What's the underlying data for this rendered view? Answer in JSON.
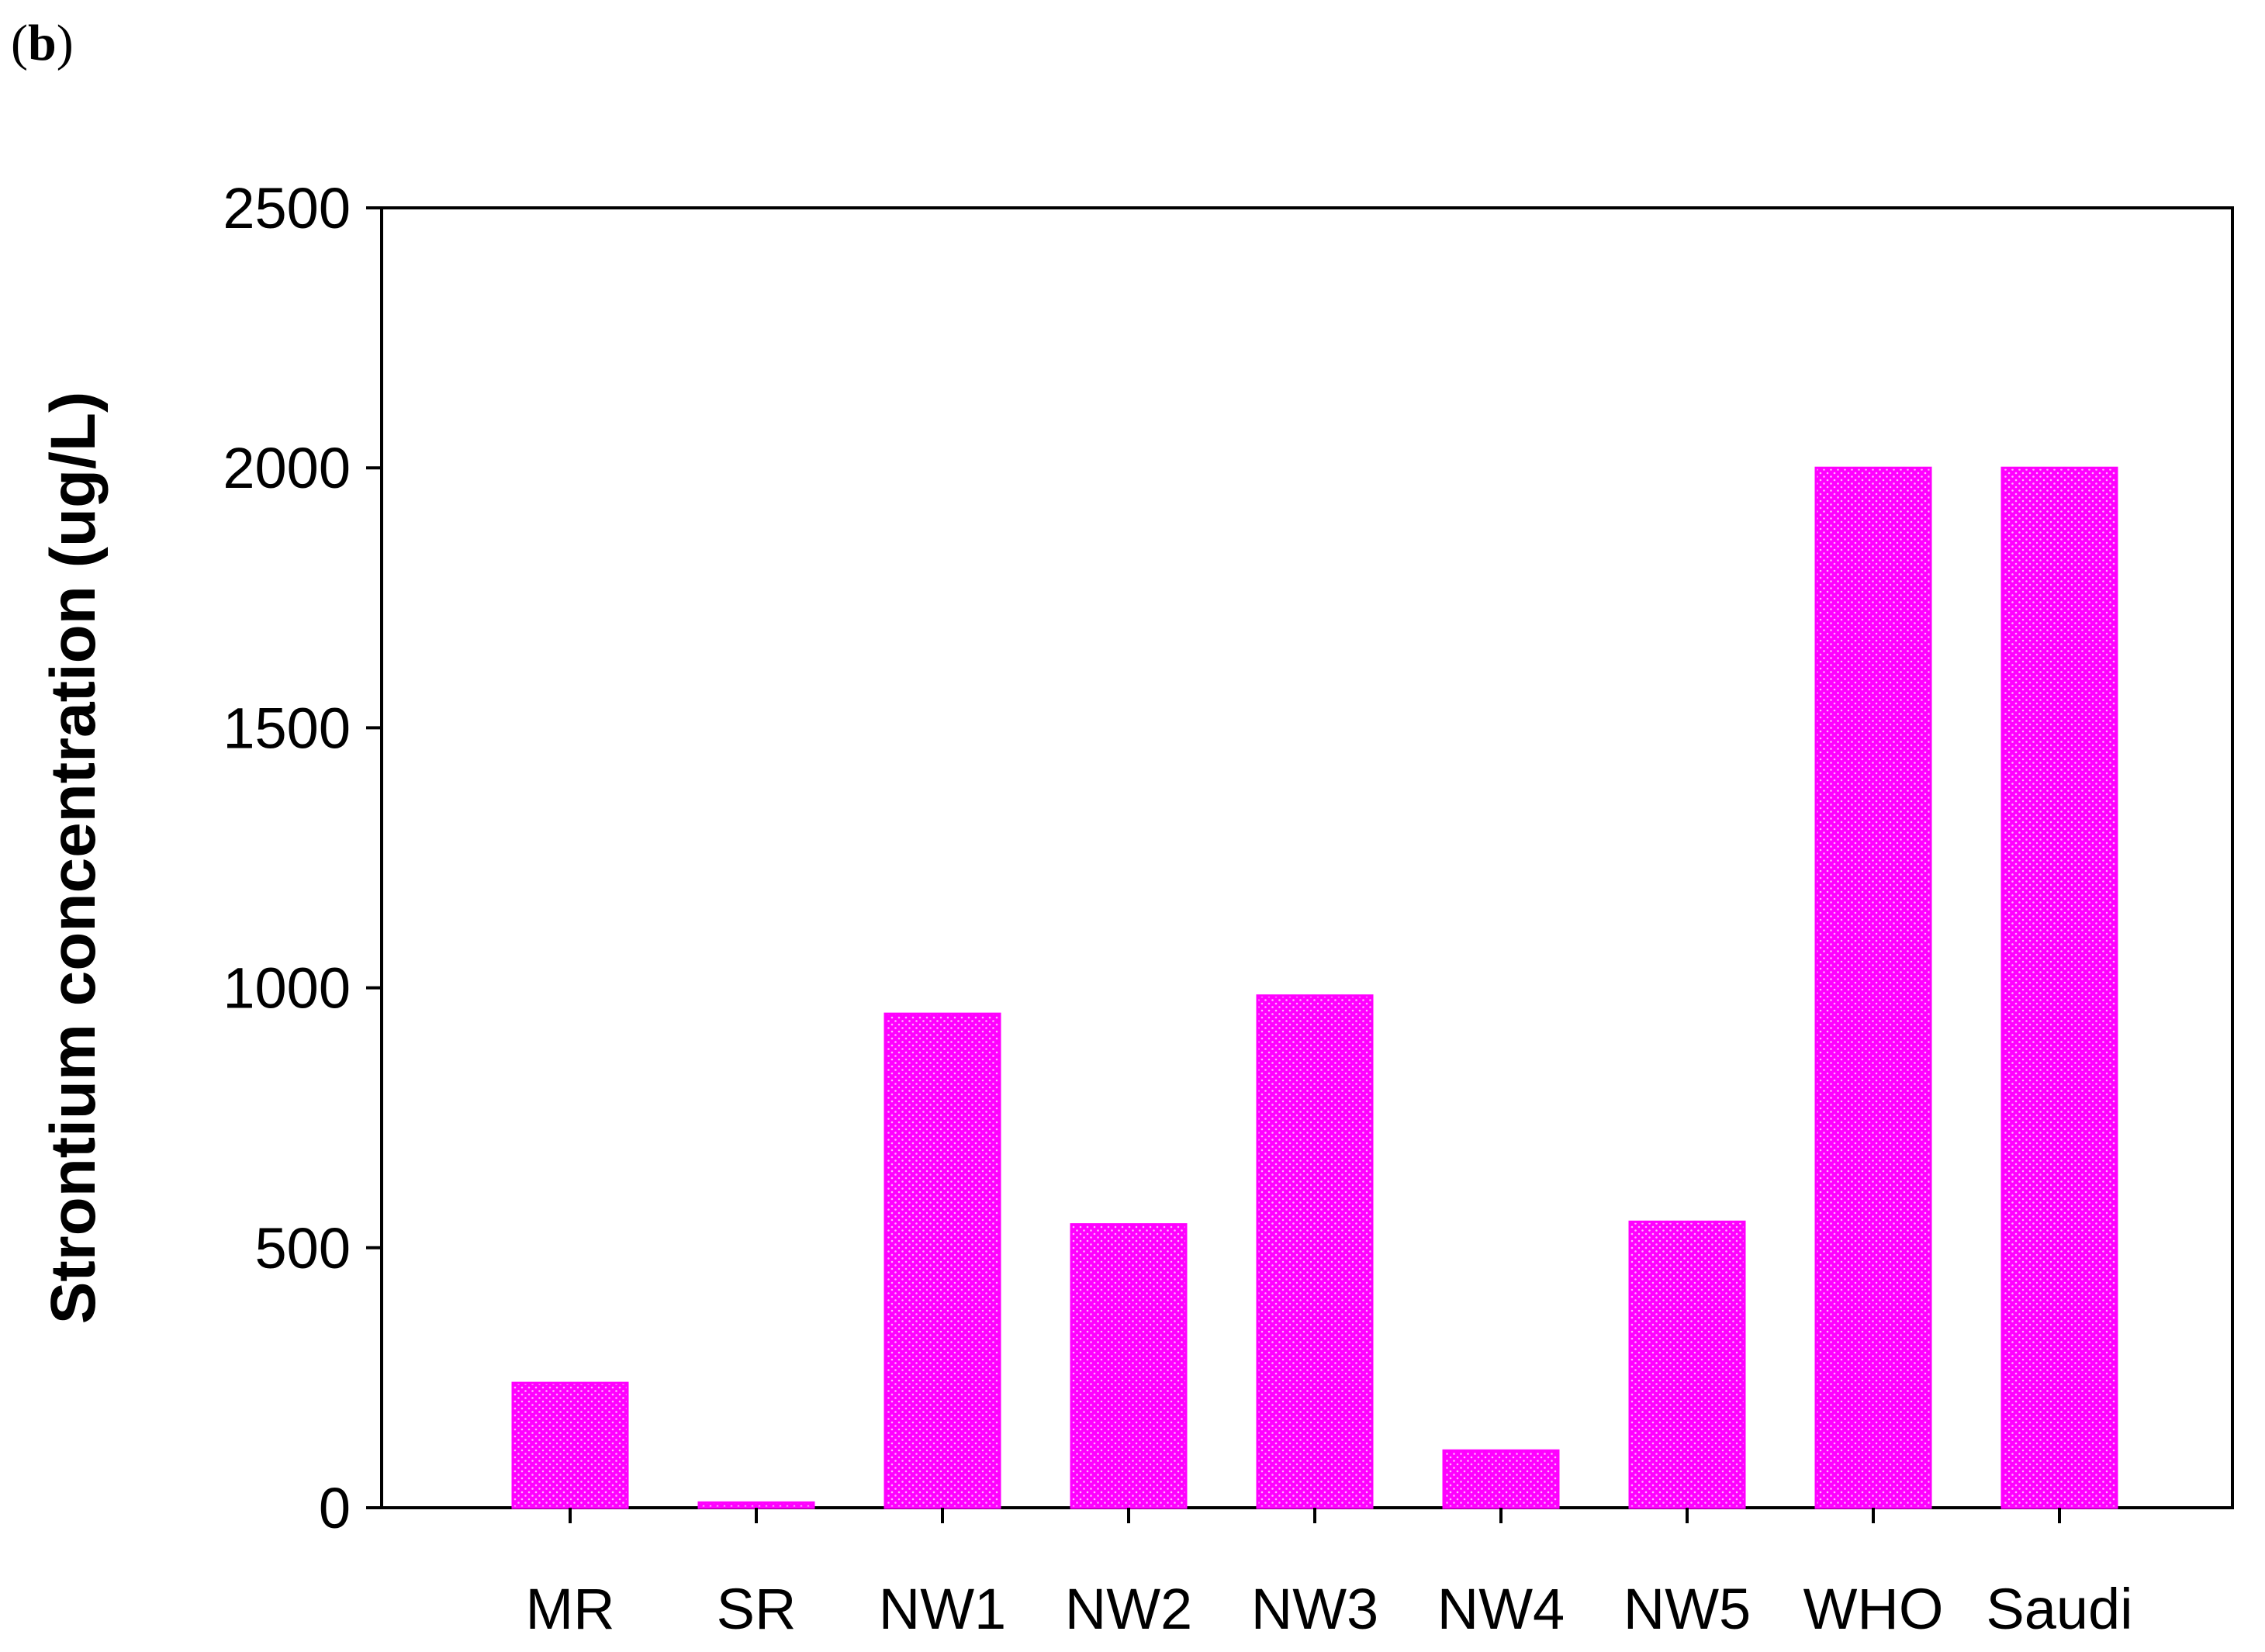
{
  "panel": {
    "open": "(",
    "letter": "b",
    "close": ")"
  },
  "chart_data": {
    "type": "bar",
    "title": "",
    "xlabel": "",
    "ylabel": "Strontium concentration (ug/L)",
    "categories": [
      "MR",
      "SR",
      "NW1",
      "NW2",
      "NW3",
      "NW4",
      "NW5",
      "WHO",
      "Saudi"
    ],
    "values": [
      240,
      10,
      950,
      545,
      985,
      110,
      550,
      2000,
      2000
    ],
    "ylim": [
      0,
      2500
    ],
    "yticks": [
      0,
      500,
      1000,
      1500,
      2000,
      2500
    ],
    "grid": false,
    "legend": "none",
    "bar_color": "#ff00ff",
    "bar_pattern": "dotted"
  }
}
